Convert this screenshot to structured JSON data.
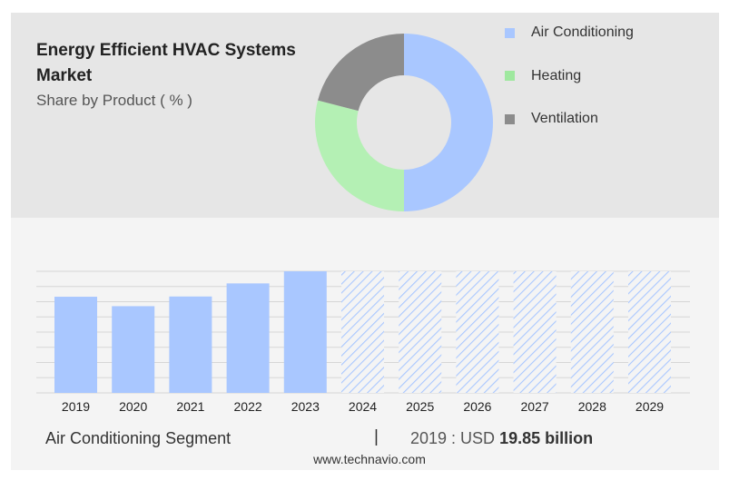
{
  "header": {
    "title": "Energy Efficient HVAC Systems Market",
    "subtitle": "Share by Product ( % )"
  },
  "legend": [
    {
      "label": "Air Conditioning",
      "color": "#a9c7ff"
    },
    {
      "label": "Heating",
      "color": "#9fe89f"
    },
    {
      "label": "Ventilation",
      "color": "#8c8c8c"
    }
  ],
  "chart_data": [
    {
      "type": "pie",
      "title": "Share by Product ( % )",
      "donut": true,
      "labels": [
        "Air Conditioning",
        "Heating",
        "Ventilation"
      ],
      "values": [
        50,
        29,
        21
      ],
      "colors": [
        "#a9c7ff",
        "#b4f0b4",
        "#8c8c8c"
      ]
    },
    {
      "type": "bar",
      "categories": [
        "2019",
        "2020",
        "2021",
        "2022",
        "2023",
        "2024",
        "2025",
        "2026",
        "2027",
        "2028",
        "2029"
      ],
      "values": [
        19.85,
        17.9,
        19.9,
        22.6,
        25.1,
        null,
        null,
        null,
        null,
        null,
        null
      ],
      "forecast_categories": [
        "2024",
        "2025",
        "2026",
        "2027",
        "2028",
        "2029"
      ],
      "ylim": [
        0,
        25.1
      ],
      "grid": true,
      "bar_color": "#a9c7ff",
      "forecast_style": "hatched"
    }
  ],
  "footer": {
    "segment": "Air Conditioning Segment",
    "separator": "|",
    "value_prefix": "2019 : USD ",
    "value": "19.85 billion",
    "source": "www.technavio.com"
  }
}
